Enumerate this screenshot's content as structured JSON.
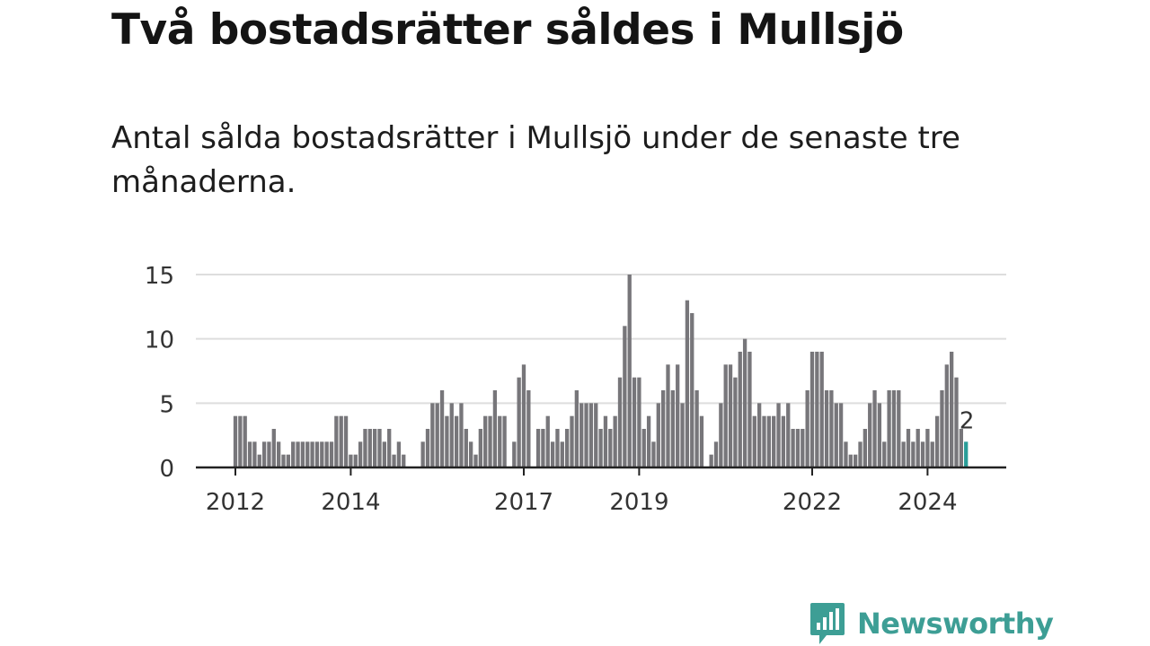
{
  "header": {
    "title": "Två bostadsrätter såldes i Mullsjö",
    "subtitle": "Antal sålda bostadsrätter i Mullsjö under de senaste tre månaderna."
  },
  "brand": {
    "name": "Newsworthy",
    "color": "#3d9e95",
    "icon": "newsworthy-bar-chart-icon"
  },
  "chart_data": {
    "type": "bar",
    "title": "",
    "xlabel": "",
    "ylabel": "",
    "ylim": [
      0,
      15
    ],
    "yticks": [
      0,
      5,
      10,
      15
    ],
    "grid": true,
    "x_ticks": [
      {
        "label": "2012",
        "index": 0
      },
      {
        "label": "2014",
        "index": 24
      },
      {
        "label": "2017",
        "index": 60
      },
      {
        "label": "2019",
        "index": 84
      },
      {
        "label": "2022",
        "index": 120
      },
      {
        "label": "2024",
        "index": 144
      }
    ],
    "start_period": "2012-01",
    "values": [
      4,
      4,
      4,
      2,
      2,
      1,
      2,
      2,
      3,
      2,
      1,
      1,
      2,
      2,
      2,
      2,
      2,
      2,
      2,
      2,
      2,
      4,
      4,
      4,
      1,
      1,
      2,
      3,
      3,
      3,
      3,
      2,
      3,
      1,
      2,
      1,
      0,
      0,
      0,
      2,
      3,
      5,
      5,
      6,
      4,
      5,
      4,
      5,
      3,
      2,
      1,
      3,
      4,
      4,
      6,
      4,
      4,
      0,
      2,
      7,
      8,
      6,
      0,
      3,
      3,
      4,
      2,
      3,
      2,
      3,
      4,
      6,
      5,
      5,
      5,
      5,
      3,
      4,
      3,
      4,
      7,
      11,
      15,
      7,
      7,
      3,
      4,
      2,
      5,
      6,
      8,
      6,
      8,
      5,
      13,
      12,
      6,
      4,
      0,
      1,
      2,
      5,
      8,
      8,
      7,
      9,
      10,
      9,
      4,
      5,
      4,
      4,
      4,
      5,
      4,
      5,
      3,
      3,
      3,
      6,
      9,
      9,
      9,
      6,
      6,
      5,
      5,
      2,
      1,
      1,
      2,
      3,
      5,
      6,
      5,
      2,
      6,
      6,
      6,
      2,
      3,
      2,
      3,
      2,
      3,
      2,
      4,
      6,
      8,
      9,
      7,
      3,
      2
    ],
    "highlight_last": 1,
    "highlight_label": "2",
    "colors": {
      "bar": "#77767a",
      "highlight": "#2a9d98",
      "grid": "#dddddd",
      "axis": "#222222"
    }
  }
}
